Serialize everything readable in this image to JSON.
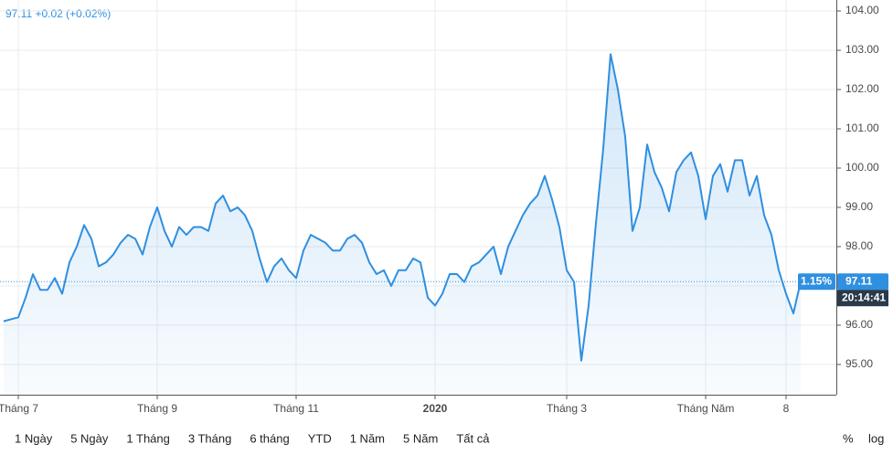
{
  "header": "97.11 +0.02 (+0.02%)",
  "chart_data": {
    "type": "area",
    "categories": [
      null,
      null,
      "Tháng 7",
      null,
      null,
      null,
      null,
      null,
      null,
      null,
      null,
      null,
      null,
      null,
      null,
      null,
      null,
      null,
      null,
      null,
      null,
      "Tháng 9",
      null,
      null,
      null,
      null,
      null,
      null,
      null,
      null,
      null,
      null,
      null,
      null,
      null,
      null,
      null,
      null,
      null,
      null,
      "Tháng 11",
      null,
      null,
      null,
      null,
      null,
      null,
      null,
      null,
      null,
      null,
      null,
      null,
      null,
      null,
      null,
      null,
      null,
      null,
      "2020",
      null,
      null,
      null,
      null,
      null,
      null,
      null,
      null,
      null,
      null,
      null,
      null,
      null,
      null,
      null,
      null,
      null,
      "Tháng 3",
      null,
      null,
      null,
      null,
      null,
      null,
      null,
      null,
      null,
      null,
      null,
      null,
      null,
      null,
      null,
      null,
      null,
      null,
      "Tháng Năm",
      null,
      null,
      null,
      null,
      null,
      null,
      null,
      null,
      null,
      null,
      "8",
      null,
      null
    ],
    "series": [
      {
        "color": "#2f8fe0",
        "values": [
          96.1,
          96.15,
          96.2,
          96.7,
          97.3,
          96.9,
          96.9,
          97.2,
          96.8,
          97.6,
          98.0,
          98.55,
          98.2,
          97.5,
          97.6,
          97.8,
          98.1,
          98.3,
          98.2,
          97.8,
          98.5,
          99.0,
          98.4,
          98.0,
          98.5,
          98.3,
          98.5,
          98.5,
          98.4,
          99.1,
          99.3,
          98.9,
          99.0,
          98.8,
          98.4,
          97.7,
          97.1,
          97.5,
          97.7,
          97.4,
          97.2,
          97.9,
          98.3,
          98.2,
          98.1,
          97.9,
          97.9,
          98.2,
          98.3,
          98.1,
          97.6,
          97.3,
          97.4,
          97.0,
          97.4,
          97.4,
          97.7,
          97.6,
          96.7,
          96.5,
          96.8,
          97.3,
          97.3,
          97.1,
          97.5,
          97.6,
          97.8,
          98.0,
          97.3,
          98.0,
          98.4,
          98.8,
          99.1,
          99.3,
          99.8,
          99.2,
          98.5,
          97.4,
          97.1,
          95.1,
          96.5,
          98.6,
          100.5,
          102.9,
          102.0,
          100.8,
          98.4,
          99.0,
          100.6,
          99.9,
          99.5,
          98.9,
          99.9,
          100.2,
          100.4,
          99.8,
          98.7,
          99.8,
          100.1,
          99.4,
          100.2,
          100.2,
          99.3,
          99.8,
          98.8,
          98.3,
          97.4,
          96.8,
          96.3,
          97.11
        ]
      }
    ],
    "ylim": [
      94.23,
      104.28
    ],
    "yticks": [
      {
        "value": 95,
        "label": "95.00"
      },
      {
        "value": 96,
        "label": "96.00"
      },
      {
        "value": 97,
        "label": "97.00"
      },
      {
        "value": 98,
        "label": "98.00"
      },
      {
        "value": 99,
        "label": "99.00"
      },
      {
        "value": 100,
        "label": "100.00"
      },
      {
        "value": 101,
        "label": "101.00"
      },
      {
        "value": 102,
        "label": "102.00"
      },
      {
        "value": 103,
        "label": "103.00"
      },
      {
        "value": 104,
        "label": "104.00"
      }
    ],
    "grid": true
  },
  "price_label": {
    "change": "1.15%",
    "price": "97.11",
    "time": "20:14:41"
  },
  "toolbar": {
    "ranges": [
      "1 Ngày",
      "5 Ngày",
      "1 Tháng",
      "3 Tháng",
      "6 tháng",
      "YTD",
      "1 Năm",
      "5 Năm",
      "Tất cả"
    ],
    "options": [
      "%",
      "log"
    ]
  }
}
